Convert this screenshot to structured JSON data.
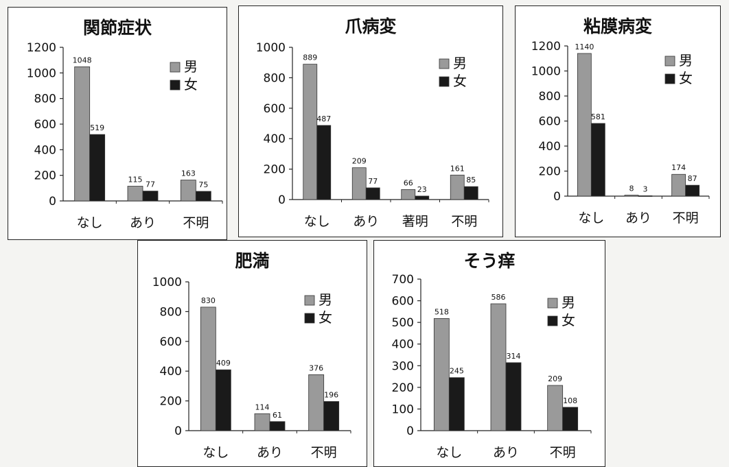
{
  "legend_labels": [
    "男",
    "女"
  ],
  "colors": {
    "male": "#9a9a9a",
    "female": "#1a1a1a",
    "axis": "#222222"
  },
  "chart_data": [
    {
      "type": "bar",
      "title": "関節症状",
      "categories": [
        "なし",
        "あり",
        "不明"
      ],
      "series": [
        {
          "name": "男",
          "values": [
            1048,
            115,
            163
          ]
        },
        {
          "name": "女",
          "values": [
            519,
            77,
            75
          ]
        }
      ],
      "ylim": [
        0,
        1200
      ],
      "yticks": [
        0,
        200,
        400,
        600,
        800,
        1000,
        1200
      ],
      "legend": "right",
      "grid": false
    },
    {
      "type": "bar",
      "title": "爪病変",
      "categories": [
        "なし",
        "あり",
        "著明",
        "不明"
      ],
      "series": [
        {
          "name": "男",
          "values": [
            889,
            209,
            66,
            161
          ]
        },
        {
          "name": "女",
          "values": [
            487,
            77,
            23,
            85
          ]
        }
      ],
      "ylim": [
        0,
        1000
      ],
      "yticks": [
        0,
        200,
        400,
        600,
        800,
        1000
      ],
      "legend": "right",
      "grid": false
    },
    {
      "type": "bar",
      "title": "粘膜病変",
      "categories": [
        "なし",
        "あり",
        "不明"
      ],
      "series": [
        {
          "name": "男",
          "values": [
            1140,
            8,
            174
          ]
        },
        {
          "name": "女",
          "values": [
            581,
            3,
            87
          ]
        }
      ],
      "ylim": [
        0,
        1200
      ],
      "yticks": [
        0,
        200,
        400,
        600,
        800,
        1000,
        1200
      ],
      "legend": "right",
      "grid": false
    },
    {
      "type": "bar",
      "title": "肥満",
      "categories": [
        "なし",
        "あり",
        "不明"
      ],
      "series": [
        {
          "name": "男",
          "values": [
            830,
            114,
            376
          ]
        },
        {
          "name": "女",
          "values": [
            409,
            61,
            196
          ]
        }
      ],
      "ylim": [
        0,
        1000
      ],
      "yticks": [
        0,
        200,
        400,
        600,
        800,
        1000
      ],
      "legend": "right",
      "grid": false
    },
    {
      "type": "bar",
      "title": "そう痒",
      "categories": [
        "なし",
        "あり",
        "不明"
      ],
      "series": [
        {
          "name": "男",
          "values": [
            518,
            586,
            209
          ]
        },
        {
          "name": "女",
          "values": [
            245,
            314,
            108
          ]
        }
      ],
      "ylim": [
        0,
        700
      ],
      "yticks": [
        0,
        100,
        200,
        300,
        400,
        500,
        600,
        700
      ],
      "legend": "right",
      "grid": false
    }
  ]
}
